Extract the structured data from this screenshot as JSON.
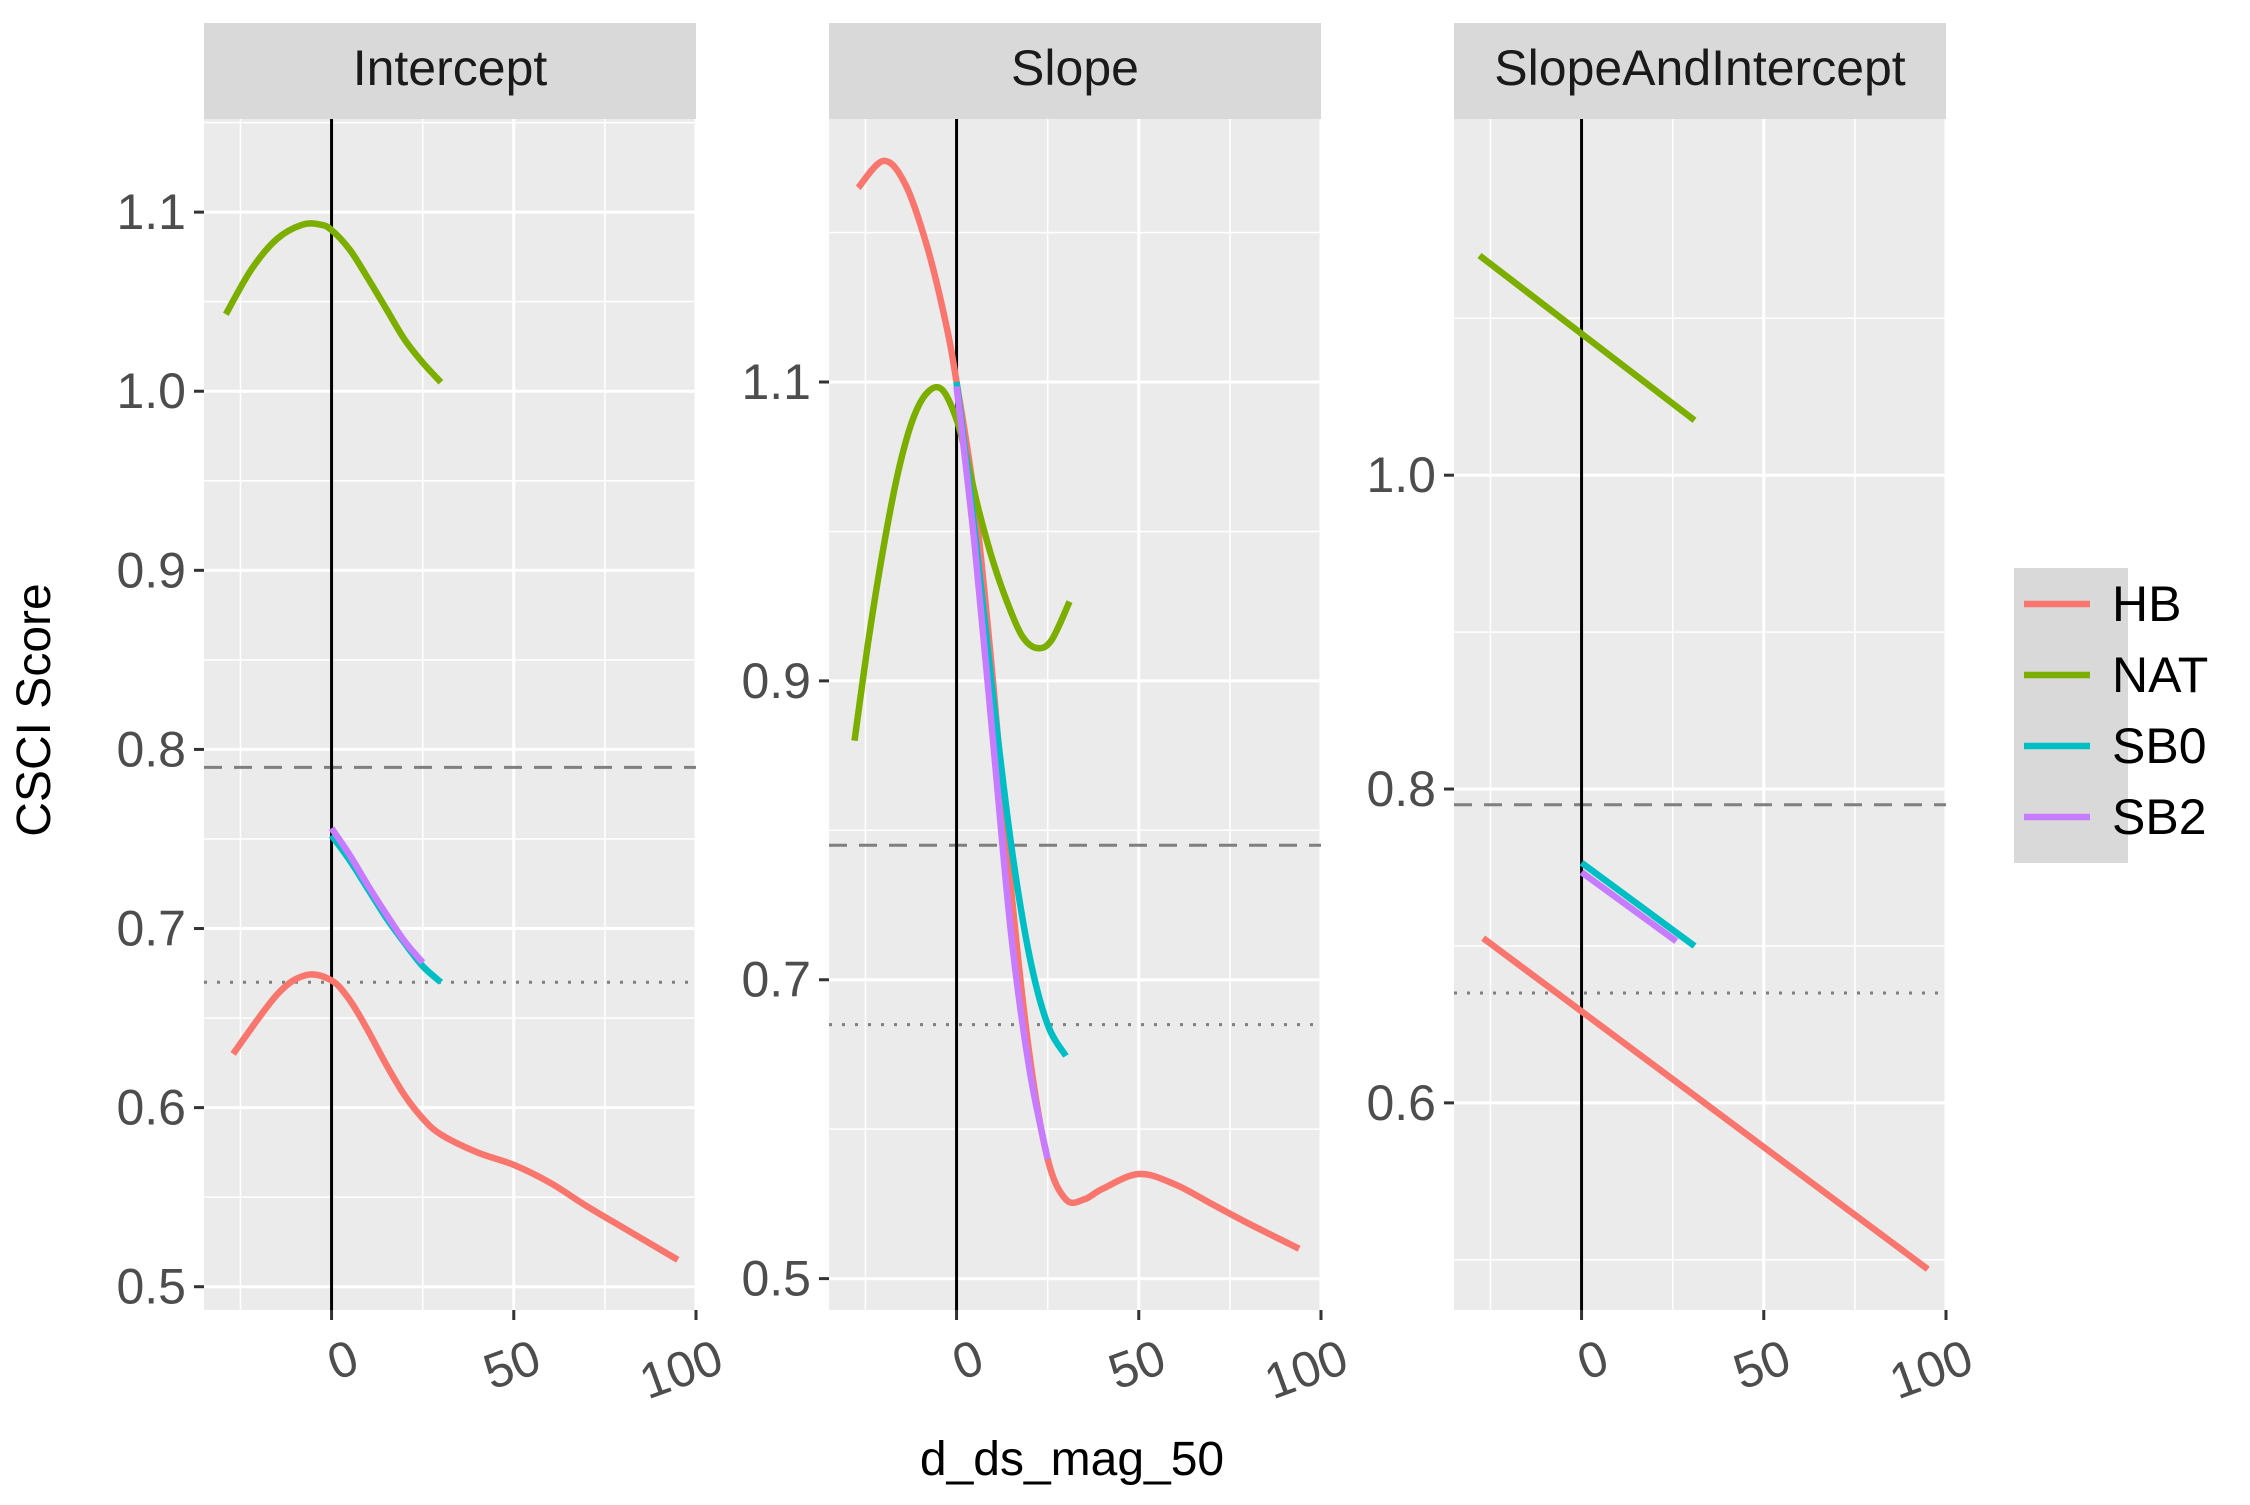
{
  "chart_data": {
    "type": "line",
    "xlabel": "d_ds_mag_50",
    "ylabel": "CSCI Score",
    "legend": {
      "position": "right",
      "entries": [
        {
          "name": "HB",
          "color": "#F8766D"
        },
        {
          "name": "NAT",
          "color": "#7CAE00"
        },
        {
          "name": "SB0",
          "color": "#00BFC4"
        },
        {
          "name": "SB2",
          "color": "#C77CFF"
        }
      ]
    },
    "x_ticks": [
      0,
      50,
      100
    ],
    "reference_lines": {
      "vertical_x": 0,
      "dashed_y": 0.79,
      "dotted_y": 0.67
    },
    "panels": [
      {
        "title": "Intercept",
        "xlim": [
          -35,
          100
        ],
        "ylim": [
          0.487,
          1.152
        ],
        "y_ticks": [
          0.5,
          0.6,
          0.7,
          0.8,
          0.9,
          1.0,
          1.1
        ],
        "y_tick_labels": [
          "0.5",
          "0.6",
          "0.7",
          "0.8",
          "0.9",
          "1.0",
          "1.1"
        ],
        "series": [
          {
            "name": "HB",
            "color": "#F8766D",
            "x": [
              -27,
              -15,
              -7,
              0,
              5,
              10,
              15,
              20,
              25,
              30,
              40,
              50,
              60,
              70,
              80,
              95
            ],
            "y": [
              0.63,
              0.663,
              0.674,
              0.671,
              0.66,
              0.643,
              0.624,
              0.607,
              0.594,
              0.585,
              0.575,
              0.568,
              0.558,
              0.545,
              0.533,
              0.515
            ]
          },
          {
            "name": "NAT",
            "color": "#7CAE00",
            "x": [
              -29,
              -22,
              -15,
              -8,
              -3,
              0,
              5,
              10,
              15,
              20,
              25,
              30
            ],
            "y": [
              1.043,
              1.068,
              1.085,
              1.093,
              1.093,
              1.09,
              1.079,
              1.063,
              1.046,
              1.029,
              1.016,
              1.005
            ]
          },
          {
            "name": "SB0",
            "color": "#00BFC4",
            "x": [
              0,
              5,
              10,
              15,
              20,
              25,
              30
            ],
            "y": [
              0.752,
              0.738,
              0.722,
              0.706,
              0.692,
              0.679,
              0.67
            ]
          },
          {
            "name": "SB2",
            "color": "#C77CFF",
            "x": [
              0,
              5,
              10,
              15,
              20,
              25
            ],
            "y": [
              0.756,
              0.741,
              0.724,
              0.708,
              0.693,
              0.681
            ]
          }
        ]
      },
      {
        "title": "Slope",
        "xlim": [
          -35,
          100
        ],
        "ylim": [
          0.479,
          1.276
        ],
        "y_ticks": [
          0.5,
          0.7,
          0.9,
          1.1
        ],
        "y_tick_labels": [
          "0.5",
          "0.7",
          "0.9",
          "1.1"
        ],
        "series": [
          {
            "name": "HB",
            "color": "#F8766D",
            "x": [
              -27,
              -20,
              -14,
              -8,
              -3,
              0,
              5,
              10,
              15,
              20,
              25,
              30,
              35,
              40,
              50,
              60,
              70,
              80,
              94
            ],
            "y": [
              1.23,
              1.248,
              1.232,
              1.19,
              1.14,
              1.1,
              1.02,
              0.9,
              0.76,
              0.65,
              0.58,
              0.553,
              0.553,
              0.56,
              0.57,
              0.563,
              0.55,
              0.537,
              0.52
            ]
          },
          {
            "name": "NAT",
            "color": "#7CAE00",
            "x": [
              -28,
              -24,
              -20,
              -16,
              -12,
              -8,
              -4,
              0,
              3,
              6,
              10,
              14,
              18,
              22,
              26,
              31
            ],
            "y": [
              0.86,
              0.93,
              0.99,
              1.04,
              1.075,
              1.093,
              1.095,
              1.075,
              1.047,
              1.015,
              0.98,
              0.952,
              0.93,
              0.922,
              0.927,
              0.953
            ]
          },
          {
            "name": "SB0",
            "color": "#00BFC4",
            "x": [
              0,
              5,
              10,
              15,
              20,
              25,
              30
            ],
            "y": [
              1.1,
              1.0,
              0.89,
              0.79,
              0.716,
              0.67,
              0.649
            ]
          },
          {
            "name": "SB2",
            "color": "#C77CFF",
            "x": [
              0,
              5,
              10,
              15,
              20,
              25
            ],
            "y": [
              1.097,
              0.99,
              0.86,
              0.73,
              0.64,
              0.58
            ]
          }
        ]
      },
      {
        "title": "SlopeAndIntercept",
        "xlim": [
          -35,
          100
        ],
        "ylim": [
          0.468,
          1.227
        ],
        "y_ticks": [
          0.6,
          0.8,
          1.0
        ],
        "y_tick_labels": [
          "0.6",
          "0.8",
          "1.0"
        ],
        "series": [
          {
            "name": "HB",
            "color": "#F8766D",
            "x": [
              -27,
              95
            ],
            "y": [
              0.705,
              0.494
            ]
          },
          {
            "name": "NAT",
            "color": "#7CAE00",
            "x": [
              -28,
              31
            ],
            "y": [
              1.14,
              1.035
            ]
          },
          {
            "name": "SB0",
            "color": "#00BFC4",
            "x": [
              0,
              31
            ],
            "y": [
              0.753,
              0.7
            ]
          },
          {
            "name": "SB2",
            "color": "#C77CFF",
            "x": [
              0,
              26
            ],
            "y": [
              0.747,
              0.703
            ]
          }
        ]
      }
    ]
  }
}
